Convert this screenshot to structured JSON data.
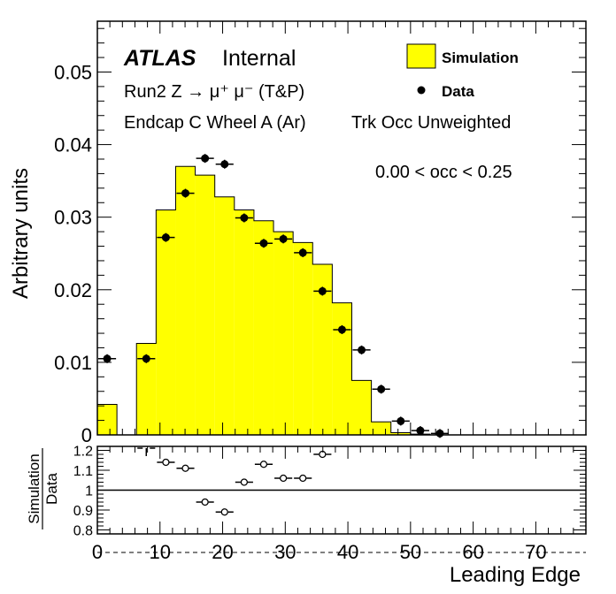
{
  "chart_data": [
    {
      "type": "bar",
      "subtype": "histogram-with-points",
      "ylabel": "Arbitrary units",
      "xlim": [
        0,
        78
      ],
      "ylim": [
        0,
        0.057
      ],
      "yticks": [
        0,
        0.01,
        0.02,
        0.03,
        0.04,
        0.05
      ],
      "ytick_labels": [
        "0",
        "0.01",
        "0.02",
        "0.03",
        "0.04",
        "0.05"
      ],
      "bin_edges": [
        0,
        3.125,
        6.25,
        9.375,
        12.5,
        15.625,
        18.75,
        21.875,
        25,
        28.125,
        31.25,
        34.375,
        37.5,
        40.625,
        43.75,
        46.875,
        50,
        53.125,
        56.25,
        59.375,
        62.5,
        65.625,
        68.75,
        71.875,
        75,
        78.125
      ],
      "series": [
        {
          "name": "Simulation",
          "style": "filled-histogram",
          "color": "#ffff00",
          "values": [
            0.0042,
            0.0,
            0.0126,
            0.031,
            0.037,
            0.0358,
            0.0328,
            0.031,
            0.0295,
            0.028,
            0.0265,
            0.0235,
            0.0182,
            0.0075,
            0.0018,
            0.0003,
            0.0001,
            0,
            0,
            0,
            0,
            0,
            0,
            0,
            0
          ]
        },
        {
          "name": "Data",
          "style": "points-with-xerr",
          "color": "#000000",
          "values": [
            0.0105,
            0.0,
            0.0105,
            0.0272,
            0.0333,
            0.0381,
            0.0373,
            0.0299,
            0.0264,
            0.027,
            0.0251,
            0.0198,
            0.0145,
            0.0117,
            0.0063,
            0.0019,
            0.0006,
            0.0002,
            0,
            0,
            0,
            0,
            0,
            0,
            0
          ]
        }
      ],
      "legend": {
        "placement": "top-right",
        "entries": [
          "Simulation",
          "Data"
        ]
      },
      "annotations": {
        "atlas": "ATLAS",
        "internal": "Internal",
        "process": "Run2 Z → μ⁺ μ⁻ (T&P)",
        "region": "Endcap C Wheel A (Ar)",
        "weighting": "Trk Occ Unweighted",
        "occupancy": "0.00 < occ < 0.25"
      }
    },
    {
      "type": "scatter",
      "subtype": "ratio",
      "ylabel_top": "Simulation",
      "ylabel_bottom": "Data",
      "xlabel": "Leading Edge",
      "xlim": [
        0,
        78
      ],
      "ylim": [
        0.78,
        1.22
      ],
      "reference_line": 1.0,
      "yticks": [
        0.8,
        0.9,
        1.0,
        1.1,
        1.2
      ],
      "ytick_labels": [
        "0.8",
        "0.9",
        "1",
        "1.1",
        "1.2"
      ],
      "xticks": [
        0,
        10,
        20,
        30,
        40,
        50,
        60,
        70
      ],
      "xtick_labels": [
        "0",
        "10",
        "20",
        "30",
        "40",
        "50",
        "60",
        "70"
      ],
      "x": [
        7.81,
        10.94,
        14.06,
        17.19,
        20.31,
        23.44,
        26.56,
        29.69,
        32.81,
        35.94
      ],
      "values": [
        1.21,
        1.14,
        1.11,
        0.94,
        0.89,
        1.04,
        1.13,
        1.06,
        1.06,
        1.18
      ]
    }
  ]
}
